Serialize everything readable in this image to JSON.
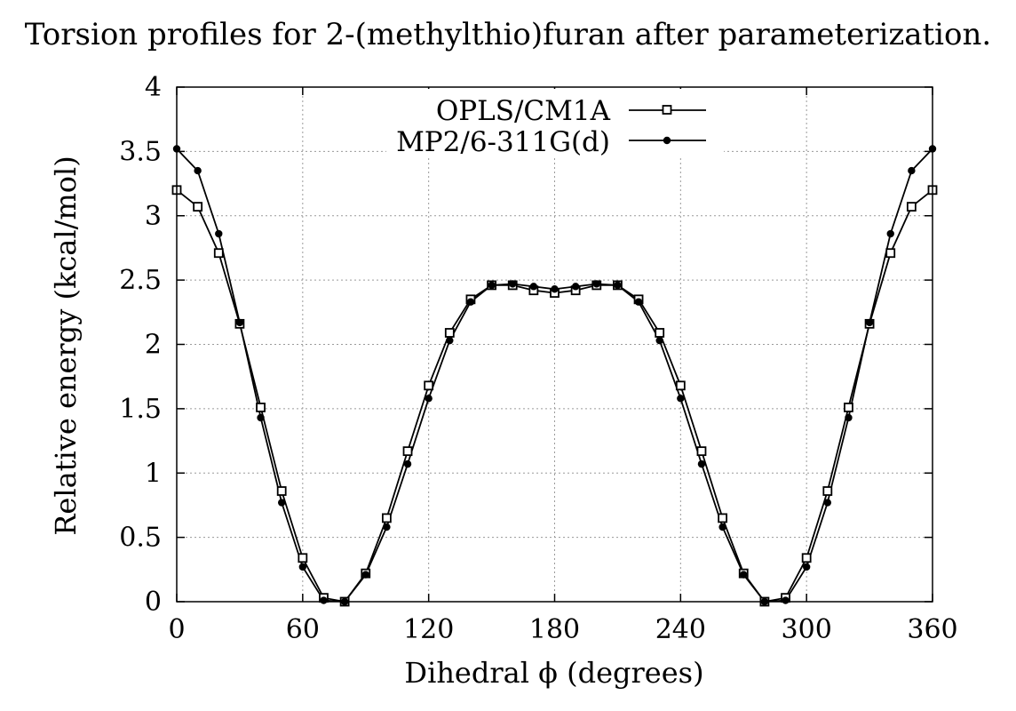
{
  "chart_data": {
    "type": "line",
    "title": "Torsion profiles for 2-(methylthio)furan after parameterization.",
    "xlabel": "Dihedral ϕ (degrees)",
    "ylabel": "Relative energy (kcal/mol)",
    "xlim": [
      0,
      360
    ],
    "ylim": [
      0,
      4
    ],
    "xticks": [
      0,
      60,
      120,
      180,
      240,
      300,
      360
    ],
    "yticks": [
      0,
      0.5,
      1,
      1.5,
      2,
      2.5,
      3,
      3.5,
      4
    ],
    "ytick_labels": [
      "0",
      "0.5",
      "1",
      "1.5",
      "2",
      "2.5",
      "3",
      "3.5",
      "4"
    ],
    "grid": true,
    "legend_position": "top-center",
    "x": [
      0,
      10,
      20,
      30,
      40,
      50,
      60,
      70,
      80,
      90,
      100,
      110,
      120,
      130,
      140,
      150,
      160,
      170,
      180,
      190,
      200,
      210,
      220,
      230,
      240,
      250,
      260,
      270,
      280,
      290,
      300,
      310,
      320,
      330,
      340,
      350,
      360
    ],
    "series": [
      {
        "name": "OPLS/CM1A",
        "marker": "open-square",
        "values": [
          3.2,
          3.07,
          2.71,
          2.16,
          1.51,
          0.86,
          0.34,
          0.03,
          0.0,
          0.22,
          0.65,
          1.17,
          1.68,
          2.09,
          2.35,
          2.46,
          2.46,
          2.42,
          2.4,
          2.42,
          2.46,
          2.46,
          2.35,
          2.09,
          1.68,
          1.17,
          0.65,
          0.22,
          0.0,
          0.03,
          0.34,
          0.86,
          1.51,
          2.16,
          2.71,
          3.07,
          3.2
        ]
      },
      {
        "name": "MP2/6-311G(d)",
        "marker": "filled-circle",
        "values": [
          3.52,
          3.35,
          2.86,
          2.17,
          1.43,
          0.77,
          0.27,
          0.01,
          0.0,
          0.21,
          0.58,
          1.07,
          1.58,
          2.03,
          2.33,
          2.46,
          2.47,
          2.45,
          2.43,
          2.45,
          2.47,
          2.46,
          2.33,
          2.03,
          1.58,
          1.07,
          0.58,
          0.21,
          0.0,
          0.01,
          0.27,
          0.77,
          1.43,
          2.17,
          2.86,
          3.35,
          3.52
        ]
      }
    ]
  }
}
